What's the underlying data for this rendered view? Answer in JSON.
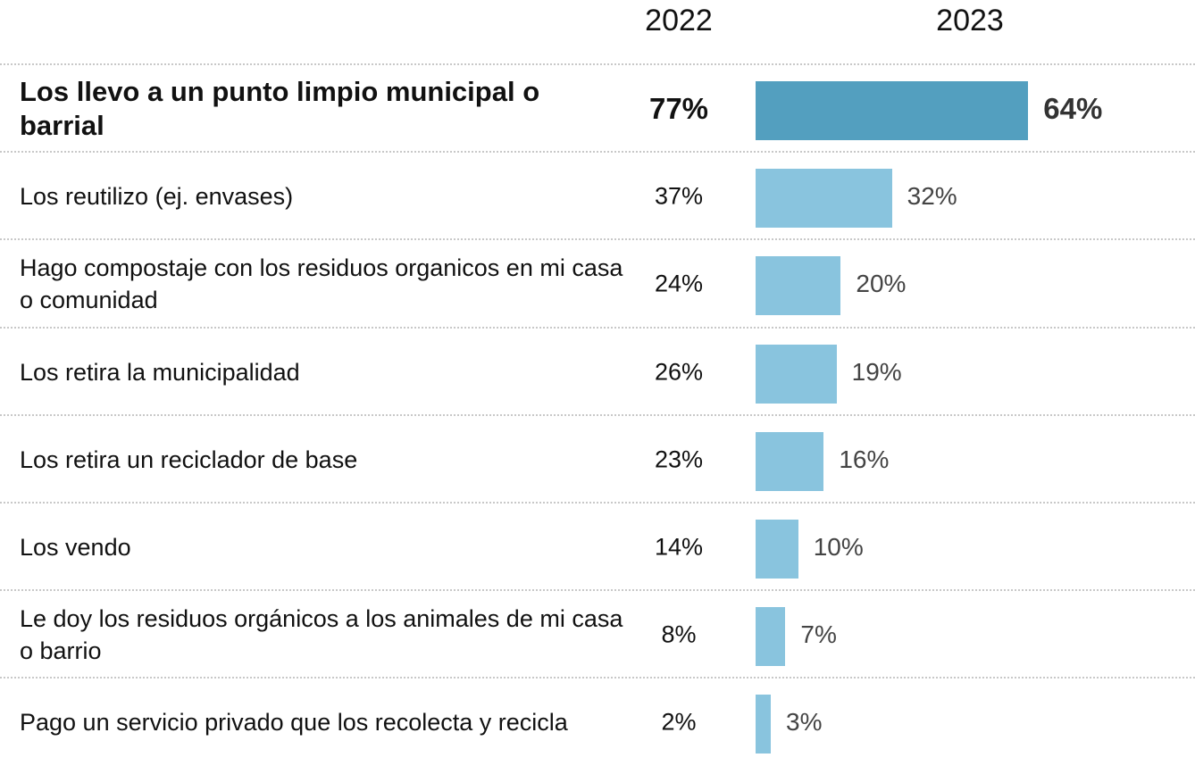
{
  "chart_data": {
    "type": "bar",
    "categories": [
      "Los llevo a un punto limpio municipal o barrial",
      "Los reutilizo (ej. envases)",
      "Hago compostaje con los residuos organicos en mi casa o comunidad",
      "Los retira la municipalidad",
      "Los retira un reciclador de base",
      "Los vendo",
      "Le doy los residuos orgánicos a los animales de mi casa o barrio",
      "Pago un servicio privado que los recolecta y recicla"
    ],
    "series": [
      {
        "name": "2022",
        "values": [
          77,
          37,
          24,
          26,
          23,
          14,
          8,
          2
        ],
        "value_labels": [
          "77%",
          "37%",
          "24%",
          "26%",
          "23%",
          "14%",
          "8%",
          "2%"
        ]
      },
      {
        "name": "2023",
        "colors": [
          "#539fbf",
          "#89c4de",
          "#89c4de",
          "#89c4de",
          "#89c4de",
          "#89c4de",
          "#89c4de",
          "#89c4de"
        ],
        "values": [
          64,
          32,
          20,
          19,
          16,
          10,
          7,
          3
        ],
        "value_labels": [
          "64%",
          "32%",
          "20%",
          "19%",
          "16%",
          "10%",
          "7%",
          "3%"
        ]
      }
    ]
  }
}
